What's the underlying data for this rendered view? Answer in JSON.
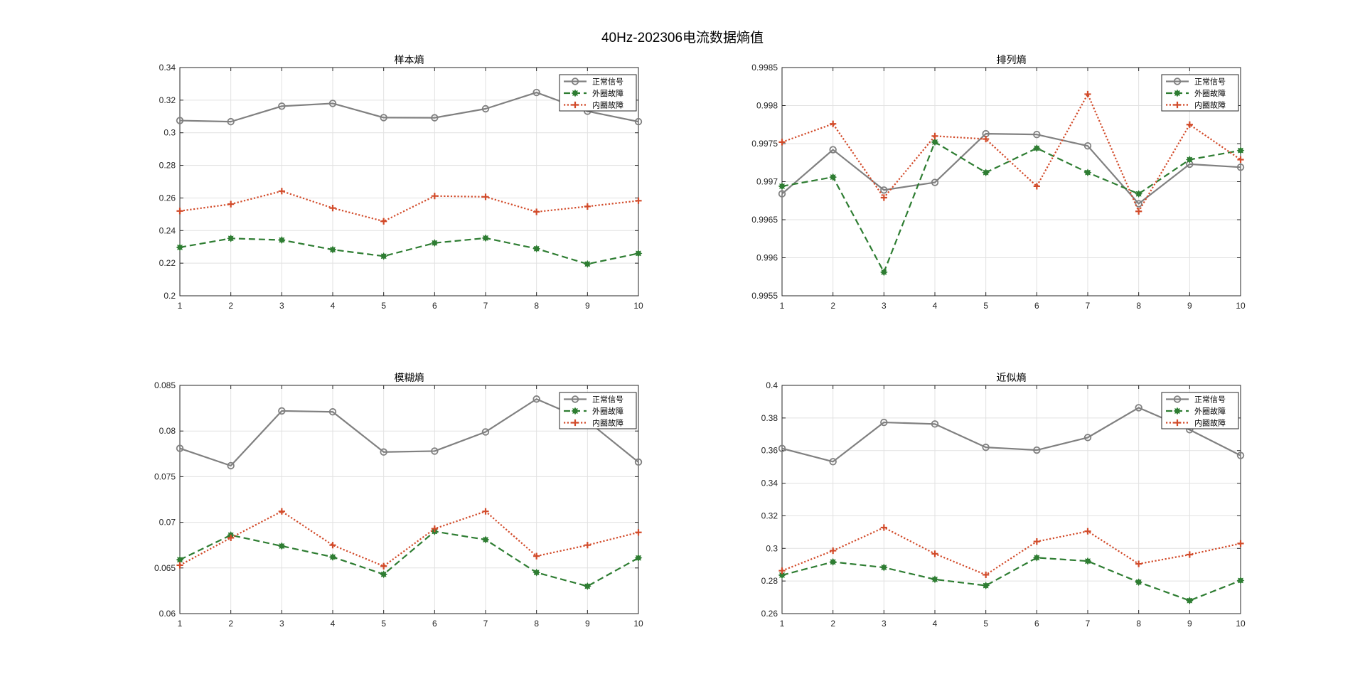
{
  "figure_title": "40Hz-202306电流数据熵值",
  "legend_labels": [
    "正常信号",
    "外圈故障",
    "内圈故障"
  ],
  "series_styles": [
    {
      "color": "#808080",
      "dash": "solid",
      "marker": "circle"
    },
    {
      "color": "#2e7d32",
      "dash": "dashed",
      "marker": "star"
    },
    {
      "color": "#d24b2a",
      "dash": "dotted",
      "marker": "plus"
    }
  ],
  "chart_data": [
    {
      "type": "line",
      "title": "样本熵",
      "xlabel": "",
      "ylabel": "",
      "x": [
        1,
        2,
        3,
        4,
        5,
        6,
        7,
        8,
        9,
        10
      ],
      "xlim": [
        1,
        10
      ],
      "ylim": [
        0.2,
        0.34
      ],
      "yticks": [
        0.2,
        0.22,
        0.24,
        0.26,
        0.28,
        0.3,
        0.32,
        0.34
      ],
      "ytick_labels": [
        "0.2",
        "0.22",
        "0.24",
        "0.26",
        "0.28",
        "0.3",
        "0.32",
        "0.34"
      ],
      "grid": true,
      "legend_position": "top-right",
      "series": [
        {
          "name": "正常信号",
          "values": [
            0.3075,
            0.3068,
            0.3163,
            0.318,
            0.3093,
            0.3092,
            0.3147,
            0.3247,
            0.3132,
            0.3068
          ]
        },
        {
          "name": "外圈故障",
          "values": [
            0.2297,
            0.2352,
            0.2342,
            0.2283,
            0.2243,
            0.2324,
            0.2354,
            0.2289,
            0.2195,
            0.226
          ]
        },
        {
          "name": "内圈故障",
          "values": [
            0.252,
            0.2562,
            0.2642,
            0.2538,
            0.2457,
            0.2612,
            0.2607,
            0.2515,
            0.2548,
            0.2583
          ]
        }
      ]
    },
    {
      "type": "line",
      "title": "排列熵",
      "xlabel": "",
      "ylabel": "",
      "x": [
        1,
        2,
        3,
        4,
        5,
        6,
        7,
        8,
        9,
        10
      ],
      "xlim": [
        1,
        10
      ],
      "ylim": [
        0.9955,
        0.9985
      ],
      "yticks": [
        0.9955,
        0.996,
        0.9965,
        0.997,
        0.9975,
        0.998,
        0.9985
      ],
      "ytick_labels": [
        "0.9955",
        "0.996",
        "0.9965",
        "0.997",
        "0.9975",
        "0.998",
        "0.9985"
      ],
      "grid": true,
      "legend_position": "top-right",
      "series": [
        {
          "name": "正常信号",
          "values": [
            0.99684,
            0.99742,
            0.99689,
            0.99699,
            0.99763,
            0.99762,
            0.99747,
            0.99671,
            0.99723,
            0.99719
          ]
        },
        {
          "name": "外圈故障",
          "values": [
            0.99694,
            0.99706,
            0.99581,
            0.99752,
            0.99712,
            0.99744,
            0.99712,
            0.99684,
            0.99729,
            0.99741
          ]
        },
        {
          "name": "内圈故障",
          "values": [
            0.99752,
            0.99776,
            0.99679,
            0.9976,
            0.99756,
            0.99694,
            0.99815,
            0.99661,
            0.99775,
            0.99729
          ]
        }
      ]
    },
    {
      "type": "line",
      "title": "模糊熵",
      "xlabel": "",
      "ylabel": "",
      "x": [
        1,
        2,
        3,
        4,
        5,
        6,
        7,
        8,
        9,
        10
      ],
      "xlim": [
        1,
        10
      ],
      "ylim": [
        0.06,
        0.085
      ],
      "yticks": [
        0.06,
        0.065,
        0.07,
        0.075,
        0.08,
        0.085
      ],
      "ytick_labels": [
        "0.06",
        "0.065",
        "0.07",
        "0.075",
        "0.08",
        "0.085"
      ],
      "grid": true,
      "legend_position": "top-right",
      "series": [
        {
          "name": "正常信号",
          "values": [
            0.0781,
            0.0762,
            0.0822,
            0.0821,
            0.0777,
            0.0778,
            0.0799,
            0.0835,
            0.0811,
            0.0766
          ]
        },
        {
          "name": "外圈故障",
          "values": [
            0.0659,
            0.0686,
            0.0674,
            0.0662,
            0.0643,
            0.069,
            0.0681,
            0.0645,
            0.063,
            0.0661
          ]
        },
        {
          "name": "内圈故障",
          "values": [
            0.0653,
            0.0683,
            0.0712,
            0.0675,
            0.0652,
            0.0693,
            0.0712,
            0.0663,
            0.0675,
            0.0689
          ]
        }
      ]
    },
    {
      "type": "line",
      "title": "近似熵",
      "xlabel": "",
      "ylabel": "",
      "x": [
        1,
        2,
        3,
        4,
        5,
        6,
        7,
        8,
        9,
        10
      ],
      "xlim": [
        1,
        10
      ],
      "ylim": [
        0.26,
        0.4
      ],
      "yticks": [
        0.26,
        0.28,
        0.3,
        0.32,
        0.34,
        0.36,
        0.38,
        0.4
      ],
      "ytick_labels": [
        "0.26",
        "0.28",
        "0.3",
        "0.32",
        "0.34",
        "0.36",
        "0.38",
        "0.4"
      ],
      "grid": true,
      "legend_position": "top-right",
      "series": [
        {
          "name": "正常信号",
          "values": [
            0.3613,
            0.3532,
            0.3773,
            0.3763,
            0.362,
            0.3603,
            0.368,
            0.3863,
            0.3728,
            0.357
          ]
        },
        {
          "name": "外圈故障",
          "values": [
            0.2836,
            0.2917,
            0.2883,
            0.281,
            0.2772,
            0.2943,
            0.2922,
            0.2793,
            0.268,
            0.2803
          ]
        },
        {
          "name": "内圈故障",
          "values": [
            0.2863,
            0.2986,
            0.3128,
            0.2967,
            0.2838,
            0.3042,
            0.3105,
            0.2905,
            0.2962,
            0.303
          ]
        }
      ]
    }
  ]
}
